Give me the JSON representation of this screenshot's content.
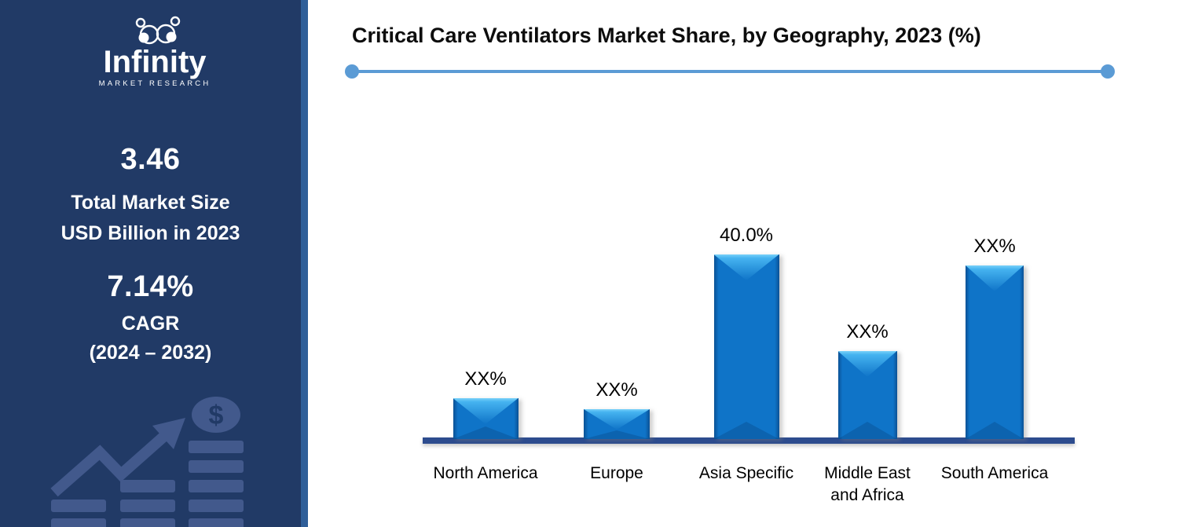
{
  "sidebar": {
    "logo": {
      "brand": "Infinity",
      "subtitle": "MARKET RESEARCH"
    },
    "stats": [
      {
        "value": "3.46",
        "line1": "Total Market Size",
        "line2": "USD Billion in 2023"
      },
      {
        "value": "7.14%",
        "line1": "CAGR",
        "line2": "(2024 – 2032)"
      }
    ]
  },
  "icons": {
    "dollar_coin": "$"
  },
  "chart_data": {
    "type": "bar",
    "title": "Critical Care Ventilators Market Share, by Geography, 2023 (%)",
    "xlabel": "",
    "ylabel": "",
    "legend": "none",
    "grid": false,
    "axis_shown": false,
    "ylim_pct": [
      0,
      45
    ],
    "categories": [
      "North America",
      "Europe",
      "Asia Specific",
      "Middle East and Africa",
      "South America"
    ],
    "value_labels": [
      "XX%",
      "XX%",
      "40.0%",
      "XX%",
      "XX%"
    ],
    "values_pct_estimated": [
      8.9,
      6.4,
      40.0,
      19.1,
      37.6
    ],
    "note": "Only Asia Specific share is disclosed (40.0%); other bars are placeholders labeled XX%, heights estimated from pixels",
    "bars": [
      {
        "category_lines": "North America",
        "value_label": "XX%",
        "est_pct": 8.9
      },
      {
        "category_lines": "Europe",
        "value_label": "XX%",
        "est_pct": 6.4
      },
      {
        "category_lines": "Asia Specific",
        "value_label": "40.0%",
        "est_pct": 40.0
      },
      {
        "category_lines": "Middle East\nand Africa",
        "value_label": "XX%",
        "est_pct": 19.1
      },
      {
        "category_lines": "South America",
        "value_label": "XX%",
        "est_pct": 37.6
      }
    ],
    "colors": {
      "sidebar_bg": "#213A66",
      "sidebar_stripe": "#2F5F99",
      "watermark": "#42598C",
      "bar_body": "#0F74C8",
      "bar_bevel_light": "#45B3F0",
      "baseline": "#2D4C8E",
      "divider": "#5B9BD5",
      "title_text": "#0D0D0D",
      "stat_text": "#FFFFFF"
    }
  }
}
